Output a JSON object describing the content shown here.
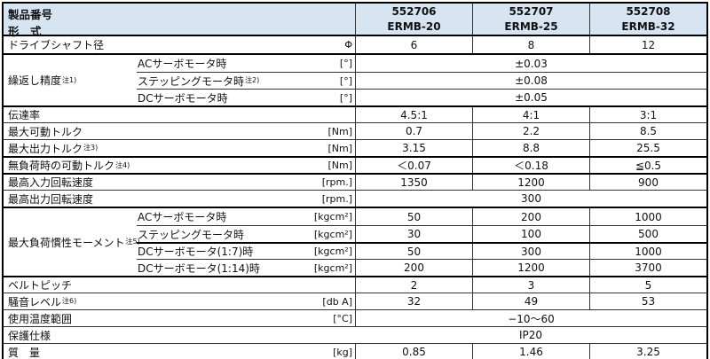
{
  "header": {
    "product_number_label": "製品番号",
    "model_label": "形　式",
    "columns": [
      {
        "number": "552706",
        "model": "ERMB-20"
      },
      {
        "number": "552707",
        "model": "ERMB-25"
      },
      {
        "number": "552708",
        "model": "ERMB-32"
      }
    ]
  },
  "rows": [
    {
      "label": "ドライブシャフト径",
      "unit": "Φ",
      "values": [
        "6",
        "8",
        "12"
      ]
    },
    {
      "group_label": "繰返し精度",
      "group_note": "注1)",
      "subrows": [
        {
          "label": "ACサーボモータ時",
          "note": "",
          "unit": "[°]",
          "span": "±0.03"
        },
        {
          "label": "ステッピングモータ時",
          "note": "注2)",
          "unit": "[°]",
          "span": "±0.08"
        },
        {
          "label": "DCサーボモータ時",
          "note": "",
          "unit": "[°]",
          "span": "±0.05"
        }
      ]
    },
    {
      "label": "伝達率",
      "unit": "",
      "values": [
        "4.5:1",
        "4:1",
        "3:1"
      ]
    },
    {
      "label": "最大可動トルク",
      "unit": "[Nm]",
      "values": [
        "0.7",
        "2.2",
        "8.5"
      ]
    },
    {
      "label": "最大出力トルク",
      "note": "注3)",
      "unit": "[Nm]",
      "values": [
        "3.15",
        "8.8",
        "25.5"
      ]
    },
    {
      "label": "無負荷時の可動トルク",
      "note": "注4)",
      "unit": "[Nm]",
      "values": [
        "＜0.07",
        "＜0.18",
        "≦0.5"
      ]
    },
    {
      "label": "最高入力回転速度",
      "unit": "[rpm.]",
      "values": [
        "1350",
        "1200",
        "900"
      ]
    },
    {
      "label": "最高出力回転速度",
      "unit": "[rpm.]",
      "span": "300"
    },
    {
      "group_label": "最大負荷慣性モーメント",
      "group_note": "注5)",
      "subrows": [
        {
          "label": "ACサーボモータ時",
          "note": "",
          "unit": "[kgcm²]",
          "values": [
            "50",
            "200",
            "1000"
          ]
        },
        {
          "label": "ステッピングモータ時",
          "note": "",
          "unit": "[kgcm²]",
          "values": [
            "30",
            "100",
            "500"
          ]
        },
        {
          "label": "DCサーボモータ(1:7)時",
          "note": "",
          "unit": "[kgcm²]",
          "values": [
            "50",
            "300",
            "1000"
          ]
        },
        {
          "label": "DCサーボモータ(1:14)時",
          "note": "",
          "unit": "[kgcm²]",
          "values": [
            "200",
            "1200",
            "3700"
          ]
        }
      ]
    },
    {
      "label": "ベルトピッチ",
      "unit": "",
      "values": [
        "2",
        "3",
        "5"
      ]
    },
    {
      "label": "騒音レベル",
      "note": "注6)",
      "unit": "[db A]",
      "values": [
        "32",
        "49",
        "53"
      ]
    },
    {
      "label": "使用温度範囲",
      "unit": "[°C]",
      "span": "−10〜60"
    },
    {
      "label": "保護仕様",
      "unit": "",
      "span": "IP20"
    },
    {
      "label": "質　量",
      "unit": "[kg]",
      "values": [
        "0.85",
        "1.46",
        "3.25"
      ]
    }
  ]
}
